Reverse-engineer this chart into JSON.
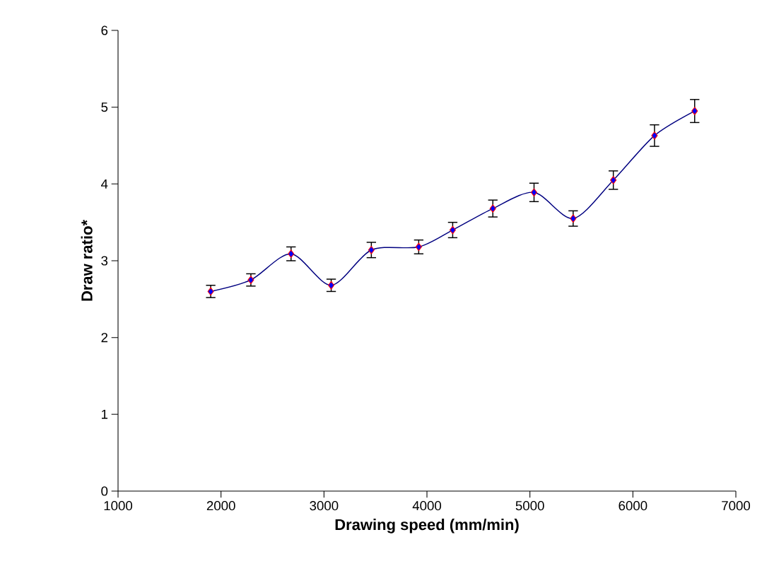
{
  "chart_data": {
    "type": "line",
    "xlabel": "Drawing speed (mm/min)",
    "ylabel": "Draw ratio*",
    "x": [
      1900,
      2290,
      2680,
      3070,
      3460,
      3920,
      4250,
      4640,
      5040,
      5420,
      5810,
      6210,
      6600
    ],
    "series": [
      {
        "color": "#000080",
        "values": [
          2.6,
          2.75,
          3.09,
          2.68,
          3.14,
          3.18,
          3.4,
          3.68,
          3.89,
          3.55,
          4.05,
          4.63,
          4.95
        ],
        "errors": [
          0.08,
          0.08,
          0.09,
          0.08,
          0.1,
          0.09,
          0.1,
          0.11,
          0.12,
          0.1,
          0.12,
          0.14,
          0.15
        ]
      }
    ],
    "xlim": [
      1000,
      7000
    ],
    "ylim": [
      0,
      6
    ],
    "xticks": [
      1000,
      2000,
      3000,
      4000,
      5000,
      6000,
      7000
    ],
    "yticks": [
      0,
      1,
      2,
      3,
      4,
      5,
      6
    ],
    "grid": false,
    "marker": "diamond",
    "line_style": "solid"
  }
}
